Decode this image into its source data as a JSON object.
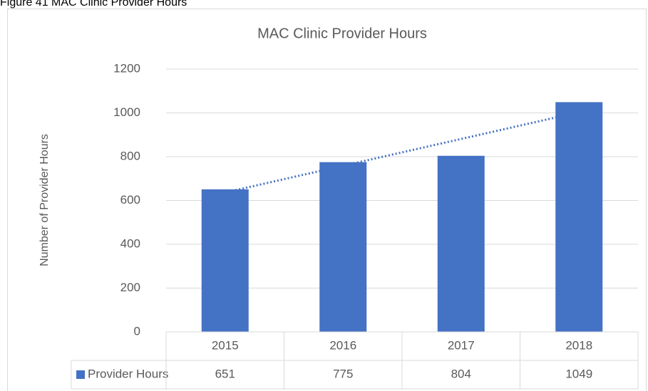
{
  "chart_data": {
    "type": "bar",
    "caption": "Figure 41 MAC Clinic Provider Hours",
    "title": "MAC Clinic Provider Hours",
    "y_label": "Number of Provider Hours",
    "categories": [
      "2015",
      "2016",
      "2017",
      "2018"
    ],
    "series": [
      {
        "name": "Provider Hours",
        "color": "#4472c4",
        "values": [
          651,
          775,
          804,
          1049
        ]
      }
    ],
    "ylim": [
      0,
      1200
    ],
    "yticks": [
      0,
      200,
      400,
      600,
      800,
      1000,
      1200
    ],
    "grid": true,
    "trendline": "linear",
    "data_table": true
  }
}
